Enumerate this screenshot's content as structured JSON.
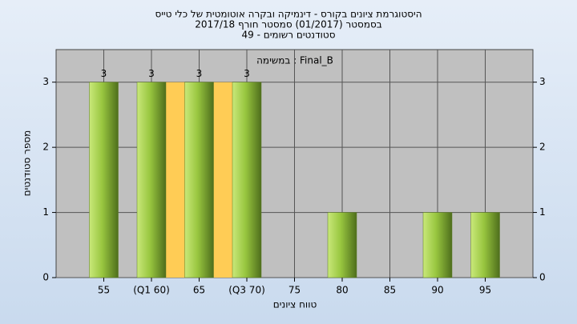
{
  "chart_data": {
    "type": "bar",
    "title": "היסטוגרמת ציונים בקורס - דינמיקה ובקרה אוטומטית של כלי טייס",
    "subtitle": "בסמסטר  (01/2017)  סמסטר חורף 2017/18",
    "subtitle2": "סטודנטים רשומים - 49",
    "annotation": "Final_B : במשימה",
    "x_label": "טווח ציונים",
    "y_label": "מספר סטודנטים",
    "x": [
      55,
      60,
      65,
      70,
      75,
      80,
      85,
      90,
      95
    ],
    "values": [
      3,
      3,
      3,
      3,
      0,
      1,
      0,
      1,
      1
    ],
    "value_labels": [
      "3",
      "3",
      "3",
      "3",
      null,
      null,
      null,
      null,
      null
    ],
    "color": "#8fbf3a",
    "quartile_color": "#ffcc55",
    "xlim": [
      50,
      100
    ],
    "xticks": [
      55,
      {
        "value": 60,
        "label": "(Q1 60)"
      },
      65,
      {
        "value": 70,
        "label": "(Q3 70)"
      },
      75,
      80,
      85,
      90,
      95
    ],
    "ylim": [
      0,
      3.5
    ],
    "yticks": [
      0,
      1,
      2,
      3
    ],
    "y2lim": [
      0,
      3.5
    ],
    "y2ticks": [
      0,
      1,
      2,
      3
    ],
    "grid": true
  }
}
